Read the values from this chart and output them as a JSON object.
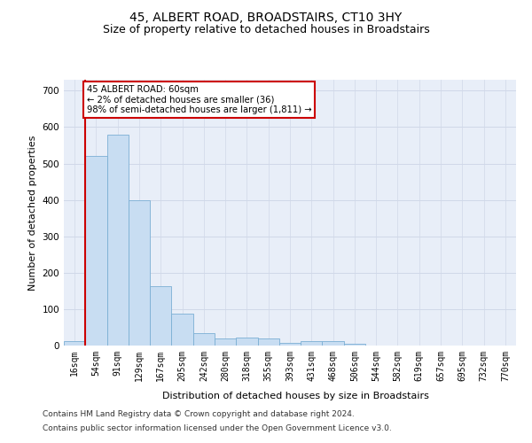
{
  "title_line1": "45, ALBERT ROAD, BROADSTAIRS, CT10 3HY",
  "title_line2": "Size of property relative to detached houses in Broadstairs",
  "xlabel": "Distribution of detached houses by size in Broadstairs",
  "ylabel": "Number of detached properties",
  "bar_color": "#c8ddf2",
  "bar_edge_color": "#7bafd4",
  "vline_color": "#cc0000",
  "annotation_line1": "45 ALBERT ROAD: 60sqm",
  "annotation_line2": "← 2% of detached houses are smaller (36)",
  "annotation_line3": "98% of semi-detached houses are larger (1,811) →",
  "annotation_box_color": "#ffffff",
  "annotation_box_edge": "#cc0000",
  "categories": [
    "16sqm",
    "54sqm",
    "91sqm",
    "129sqm",
    "167sqm",
    "205sqm",
    "242sqm",
    "280sqm",
    "318sqm",
    "355sqm",
    "393sqm",
    "431sqm",
    "468sqm",
    "506sqm",
    "544sqm",
    "582sqm",
    "619sqm",
    "657sqm",
    "695sqm",
    "732sqm",
    "770sqm"
  ],
  "values": [
    13,
    520,
    580,
    400,
    163,
    88,
    33,
    20,
    22,
    20,
    8,
    12,
    12,
    5,
    0,
    0,
    0,
    0,
    0,
    0,
    0
  ],
  "ylim": [
    0,
    730
  ],
  "yticks": [
    0,
    100,
    200,
    300,
    400,
    500,
    600,
    700
  ],
  "grid_color": "#d0d8e8",
  "bg_color": "#e8eef8",
  "footer_line1": "Contains HM Land Registry data © Crown copyright and database right 2024.",
  "footer_line2": "Contains public sector information licensed under the Open Government Licence v3.0.",
  "title_fontsize": 10,
  "subtitle_fontsize": 9,
  "axis_label_fontsize": 8,
  "tick_fontsize": 7,
  "footer_fontsize": 6.5
}
